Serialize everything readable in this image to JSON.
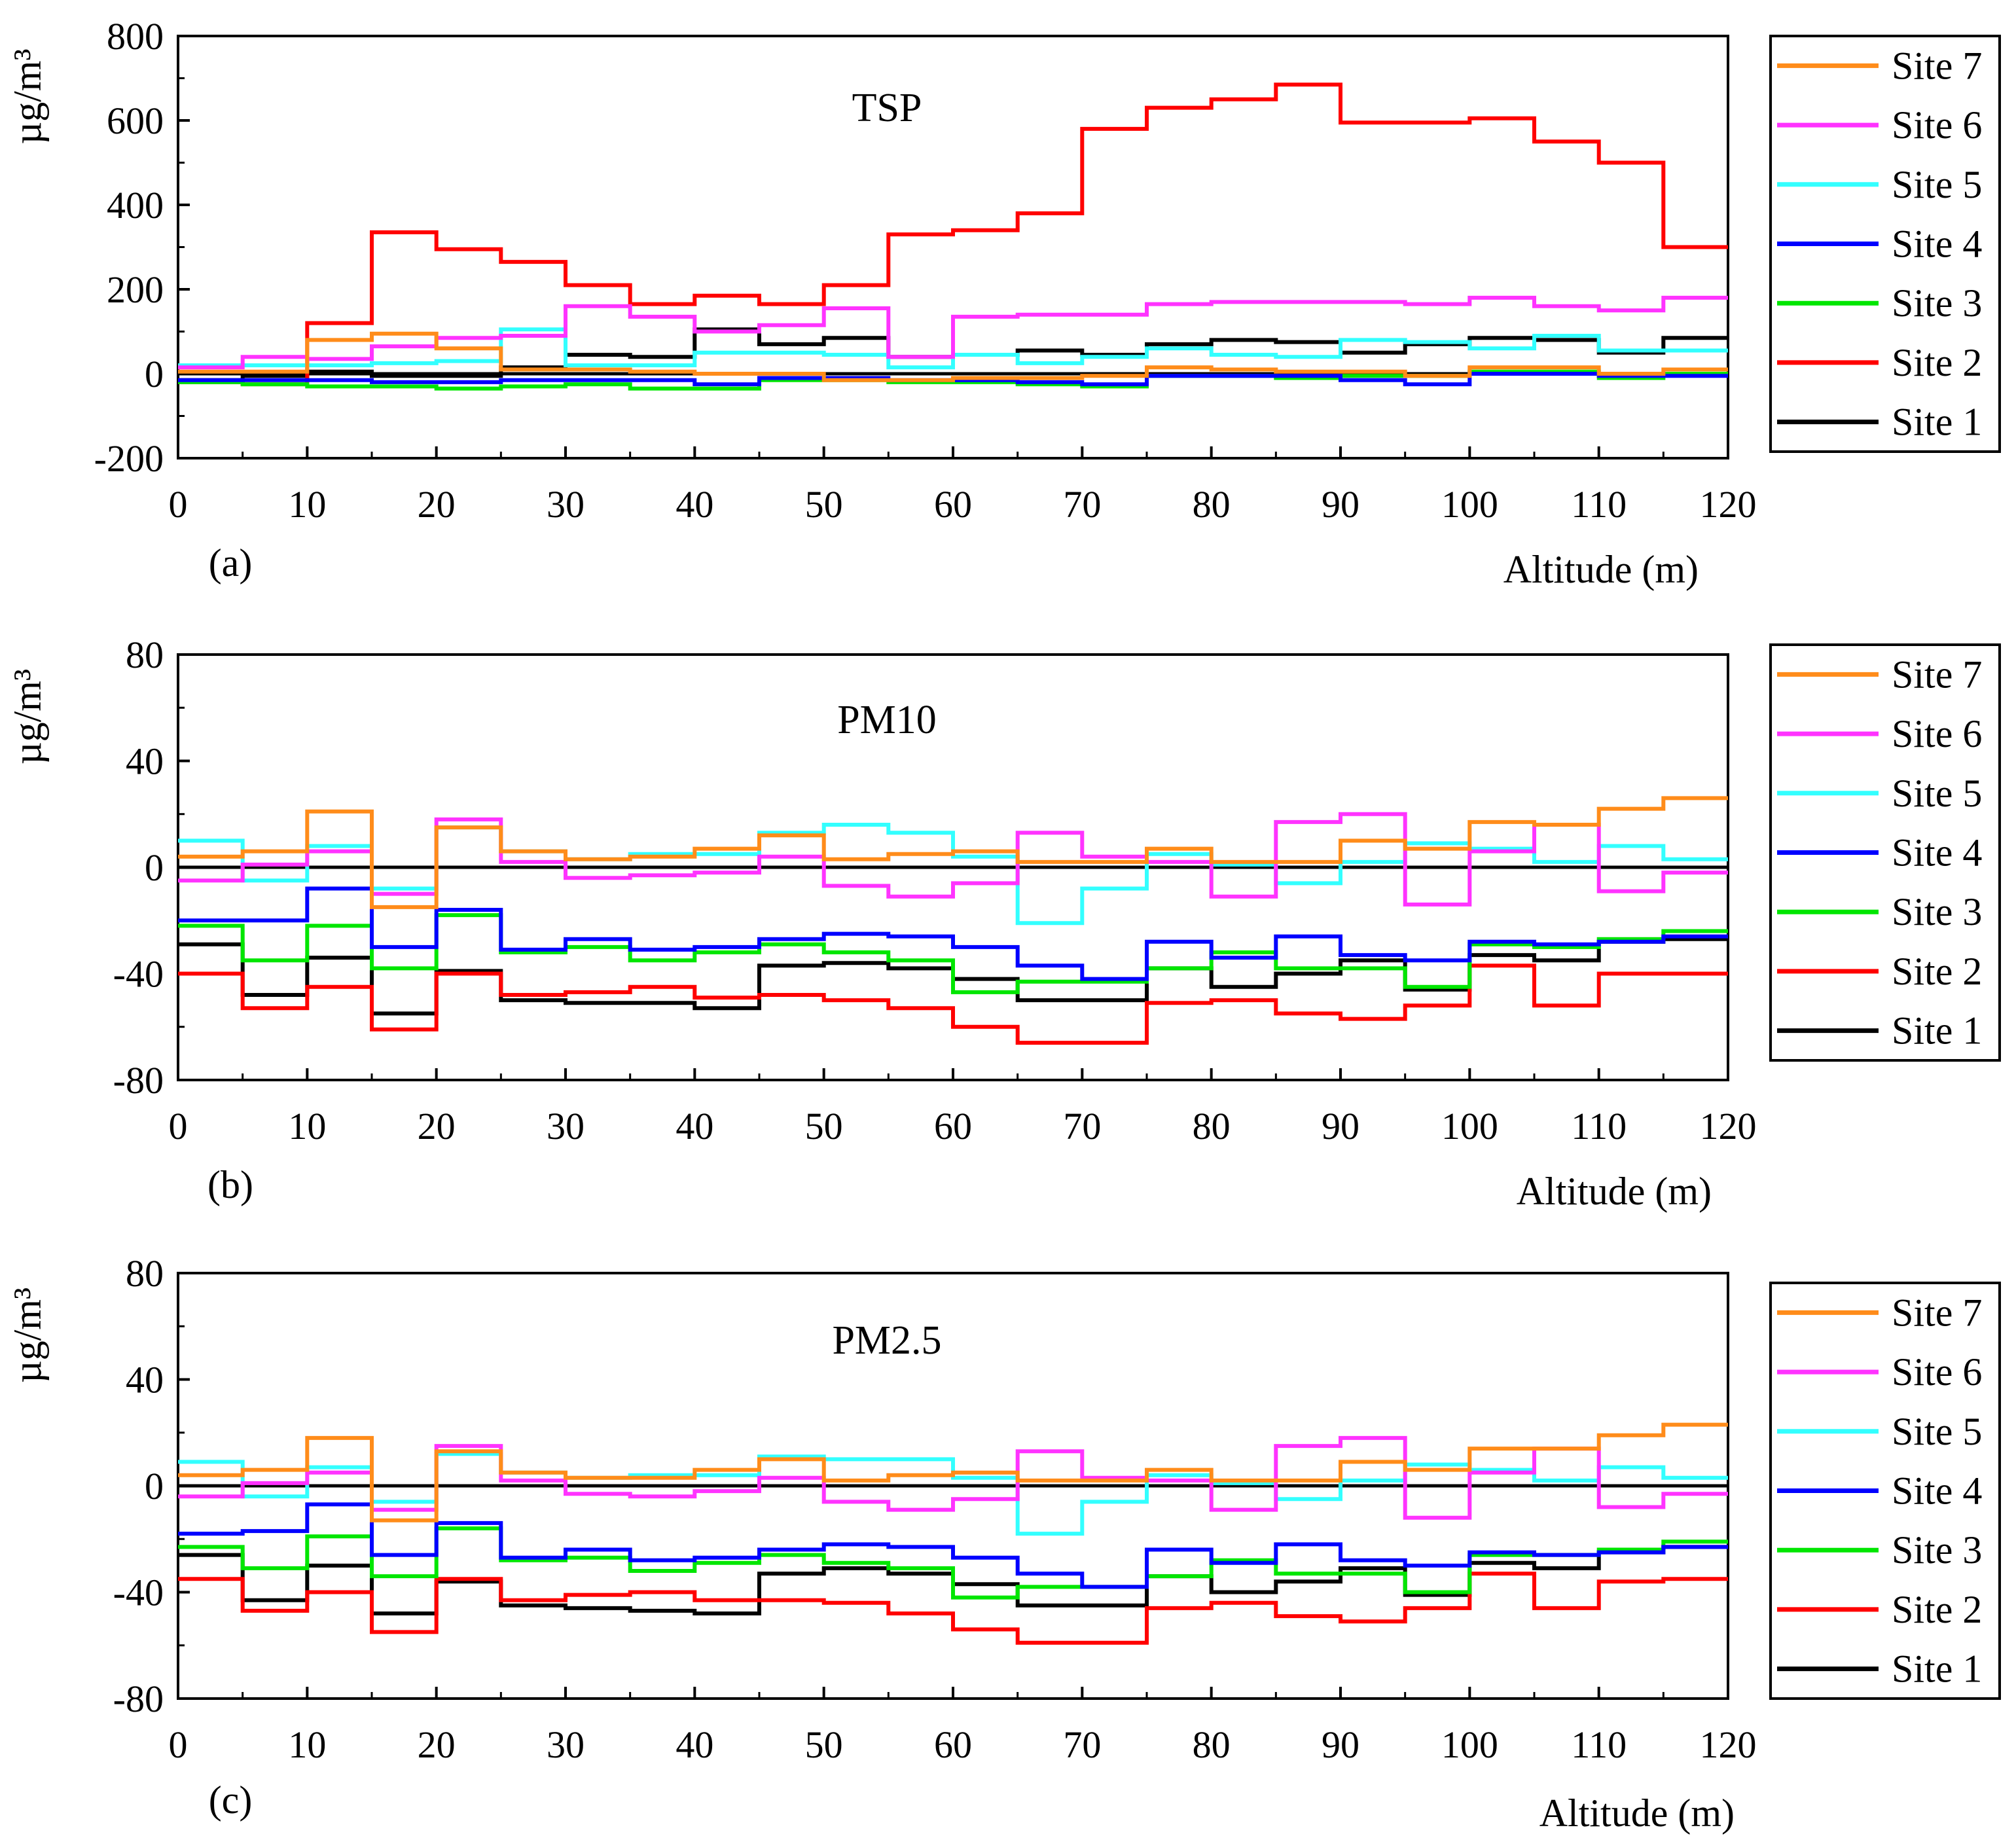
{
  "chart_data": [
    {
      "type": "line",
      "title": "TSP",
      "panel_label": "(a)",
      "xlabel": "Altitude (m)",
      "ylabel": "µg/m³",
      "xlim": [
        0,
        120
      ],
      "ylim": [
        -200,
        800
      ],
      "x_ticks": [
        0,
        10,
        20,
        30,
        40,
        50,
        60,
        70,
        80,
        90,
        100,
        110,
        120
      ],
      "y_ticks": [
        -200,
        0,
        200,
        400,
        600,
        800
      ],
      "legend_position": "right",
      "x_bin_edges": [
        0,
        5,
        10,
        15,
        20,
        25,
        30,
        35,
        40,
        45,
        50,
        55,
        60,
        65,
        70,
        75,
        80,
        85,
        90,
        95,
        100,
        105,
        110,
        115,
        120
      ],
      "series": [
        {
          "name": "Site 7",
          "color": "#ff8c1a",
          "values": [
            5,
            5,
            80,
            95,
            60,
            10,
            10,
            5,
            0,
            0,
            -15,
            -15,
            -10,
            -10,
            -5,
            15,
            10,
            5,
            5,
            -5,
            15,
            15,
            0,
            10
          ]
        },
        {
          "name": "Site 6",
          "color": "#ff33ff",
          "values": [
            15,
            40,
            35,
            65,
            85,
            90,
            160,
            135,
            100,
            115,
            155,
            40,
            135,
            140,
            140,
            165,
            170,
            170,
            170,
            165,
            180,
            160,
            150,
            180
          ]
        },
        {
          "name": "Site 5",
          "color": "#33ffff",
          "values": [
            20,
            20,
            20,
            25,
            30,
            105,
            20,
            20,
            50,
            50,
            45,
            15,
            45,
            25,
            40,
            60,
            45,
            40,
            80,
            75,
            60,
            90,
            55,
            55
          ]
        },
        {
          "name": "Site 4",
          "color": "#0000ff",
          "values": [
            -15,
            -15,
            -15,
            -20,
            -20,
            -15,
            -15,
            -15,
            -25,
            -10,
            -10,
            -15,
            -15,
            -20,
            -25,
            -5,
            -5,
            -5,
            -15,
            -25,
            0,
            0,
            -5,
            -5
          ]
        },
        {
          "name": "Site 3",
          "color": "#00e600",
          "values": [
            -20,
            -25,
            -30,
            -30,
            -35,
            -30,
            -25,
            -35,
            -35,
            -15,
            -15,
            -20,
            -20,
            -25,
            -30,
            -5,
            -5,
            -10,
            -5,
            -5,
            5,
            5,
            -10,
            0
          ]
        },
        {
          "name": "Site 2",
          "color": "#ff0000",
          "values": [
            -20,
            -25,
            120,
            335,
            295,
            265,
            210,
            165,
            185,
            165,
            210,
            330,
            340,
            380,
            580,
            630,
            650,
            685,
            595,
            595,
            605,
            550,
            500,
            300
          ]
        },
        {
          "name": "Site 1",
          "color": "#000000",
          "values": [
            -15,
            -5,
            5,
            -5,
            -5,
            15,
            45,
            40,
            105,
            70,
            85,
            40,
            45,
            55,
            45,
            70,
            80,
            75,
            50,
            70,
            85,
            80,
            50,
            85
          ]
        }
      ]
    },
    {
      "type": "line",
      "title": "PM10",
      "panel_label": "(b)",
      "xlabel": "Altitude (m)",
      "ylabel": "µg/m³",
      "xlim": [
        0,
        120
      ],
      "ylim": [
        -80,
        80
      ],
      "x_ticks": [
        0,
        10,
        20,
        30,
        40,
        50,
        60,
        70,
        80,
        90,
        100,
        110,
        120
      ],
      "y_ticks": [
        -80,
        -40,
        0,
        40,
        80
      ],
      "legend_position": "right",
      "x_bin_edges": [
        0,
        5,
        10,
        15,
        20,
        25,
        30,
        35,
        40,
        45,
        50,
        55,
        60,
        65,
        70,
        75,
        80,
        85,
        90,
        95,
        100,
        105,
        110,
        115,
        120
      ],
      "series": [
        {
          "name": "Site 7",
          "color": "#ff8c1a",
          "values": [
            4,
            6,
            21,
            -15,
            15,
            6,
            3,
            4,
            7,
            12,
            3,
            5,
            6,
            2,
            2,
            7,
            2,
            2,
            10,
            7,
            17,
            16,
            22,
            26
          ]
        },
        {
          "name": "Site 6",
          "color": "#ff33ff",
          "values": [
            -5,
            1,
            6,
            -10,
            18,
            2,
            -4,
            -3,
            -2,
            4,
            -7,
            -11,
            -6,
            13,
            4,
            2,
            -11,
            17,
            20,
            -14,
            6,
            16,
            -9,
            -2
          ]
        },
        {
          "name": "Site 5",
          "color": "#33ffff",
          "values": [
            10,
            -5,
            8,
            -8,
            15,
            6,
            3,
            5,
            5,
            13,
            16,
            13,
            4,
            -21,
            -8,
            5,
            1,
            -6,
            2,
            9,
            7,
            2,
            8,
            3
          ]
        },
        {
          "name": "Site 4",
          "color": "#0000ff",
          "values": [
            -20,
            -20,
            -8,
            -30,
            -16,
            -31,
            -27,
            -31,
            -30,
            -27,
            -25,
            -26,
            -30,
            -37,
            -42,
            -28,
            -34,
            -26,
            -33,
            -35,
            -28,
            -29,
            -28,
            -26
          ]
        },
        {
          "name": "Site 3",
          "color": "#00e600",
          "values": [
            -22,
            -35,
            -22,
            -38,
            -18,
            -32,
            -30,
            -35,
            -32,
            -29,
            -32,
            -35,
            -47,
            -43,
            -43,
            -38,
            -32,
            -38,
            -38,
            -45,
            -29,
            -30,
            -27,
            -24
          ]
        },
        {
          "name": "Site 2",
          "color": "#ff0000",
          "values": [
            -40,
            -53,
            -45,
            -61,
            -40,
            -48,
            -47,
            -45,
            -49,
            -48,
            -50,
            -53,
            -60,
            -66,
            -66,
            -51,
            -50,
            -55,
            -57,
            -52,
            -37,
            -52,
            -40,
            -40
          ]
        },
        {
          "name": "Site 1",
          "color": "#000000",
          "values": [
            -29,
            -48,
            -34,
            -55,
            -39,
            -50,
            -51,
            -51,
            -53,
            -37,
            -36,
            -38,
            -42,
            -50,
            -50,
            -38,
            -45,
            -40,
            -35,
            -46,
            -33,
            -35,
            -28,
            -27
          ]
        }
      ]
    },
    {
      "type": "line",
      "title": "PM2.5",
      "panel_label": "(c)",
      "xlabel": "Altitude (m)",
      "ylabel": "µg/m³",
      "xlim": [
        0,
        120
      ],
      "ylim": [
        -80,
        80
      ],
      "x_ticks": [
        0,
        10,
        20,
        30,
        40,
        50,
        60,
        70,
        80,
        90,
        100,
        110,
        120
      ],
      "y_ticks": [
        -80,
        -40,
        0,
        40,
        80
      ],
      "legend_position": "right",
      "x_bin_edges": [
        0,
        5,
        10,
        15,
        20,
        25,
        30,
        35,
        40,
        45,
        50,
        55,
        60,
        65,
        70,
        75,
        80,
        85,
        90,
        95,
        100,
        105,
        110,
        115,
        120
      ],
      "series": [
        {
          "name": "Site 7",
          "color": "#ff8c1a",
          "values": [
            4,
            6,
            18,
            -13,
            13,
            5,
            3,
            3,
            6,
            10,
            2,
            4,
            5,
            2,
            2,
            6,
            2,
            2,
            9,
            6,
            14,
            14,
            19,
            23
          ]
        },
        {
          "name": "Site 6",
          "color": "#ff33ff",
          "values": [
            -4,
            1,
            5,
            -9,
            15,
            2,
            -3,
            -4,
            -2,
            3,
            -6,
            -9,
            -5,
            13,
            3,
            2,
            -9,
            15,
            18,
            -12,
            5,
            14,
            -8,
            -3
          ]
        },
        {
          "name": "Site 5",
          "color": "#33ffff",
          "values": [
            9,
            -4,
            7,
            -6,
            12,
            5,
            3,
            4,
            4,
            11,
            10,
            10,
            3,
            -18,
            -6,
            4,
            1,
            -5,
            2,
            8,
            6,
            2,
            7,
            3
          ]
        },
        {
          "name": "Site 4",
          "color": "#0000ff",
          "values": [
            -18,
            -17,
            -7,
            -26,
            -14,
            -27,
            -24,
            -28,
            -27,
            -24,
            -22,
            -23,
            -27,
            -33,
            -38,
            -24,
            -29,
            -22,
            -28,
            -30,
            -25,
            -26,
            -25,
            -23
          ]
        },
        {
          "name": "Site 3",
          "color": "#00e600",
          "values": [
            -23,
            -31,
            -19,
            -34,
            -16,
            -28,
            -27,
            -32,
            -29,
            -26,
            -29,
            -31,
            -42,
            -38,
            -38,
            -34,
            -28,
            -33,
            -33,
            -40,
            -26,
            -26,
            -24,
            -21
          ]
        },
        {
          "name": "Site 2",
          "color": "#ff0000",
          "values": [
            -35,
            -47,
            -40,
            -55,
            -35,
            -43,
            -41,
            -40,
            -43,
            -43,
            -44,
            -48,
            -54,
            -59,
            -59,
            -46,
            -44,
            -49,
            -51,
            -46,
            -33,
            -46,
            -36,
            -35
          ]
        },
        {
          "name": "Site 1",
          "color": "#000000",
          "values": [
            -26,
            -43,
            -30,
            -48,
            -36,
            -45,
            -46,
            -47,
            -48,
            -33,
            -31,
            -33,
            -37,
            -45,
            -45,
            -34,
            -40,
            -36,
            -31,
            -41,
            -29,
            -31,
            -25,
            -23
          ]
        }
      ]
    }
  ]
}
